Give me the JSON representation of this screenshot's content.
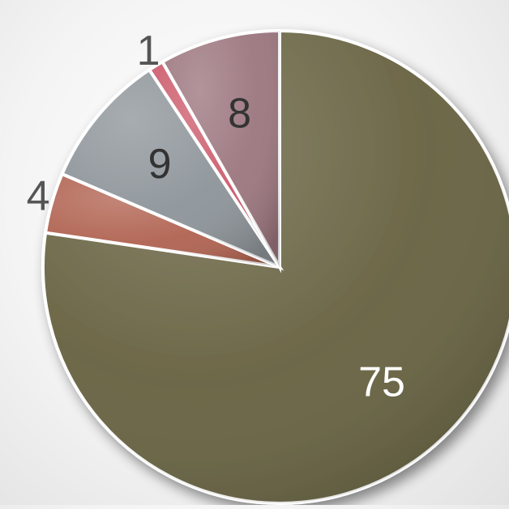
{
  "chart_data": {
    "type": "pie",
    "categories": [
      "",
      "",
      "",
      "",
      ""
    ],
    "values": [
      75,
      4,
      9,
      1,
      8
    ],
    "labels": [
      "75",
      "4",
      "9",
      "1",
      "8"
    ],
    "colors": [
      "#676241",
      "#b16452",
      "#8e959a",
      "#cc5a6b",
      "#9c767e"
    ],
    "label_colors": [
      "#ffffff",
      "#555555",
      "#333333",
      "#555555",
      "#333333"
    ],
    "label_placement": [
      "inside",
      "outside",
      "inside",
      "outside",
      "inside"
    ],
    "start_angle_deg": 0,
    "direction": "clockwise",
    "style": "3d-shaded",
    "legend": "none",
    "title": ""
  }
}
